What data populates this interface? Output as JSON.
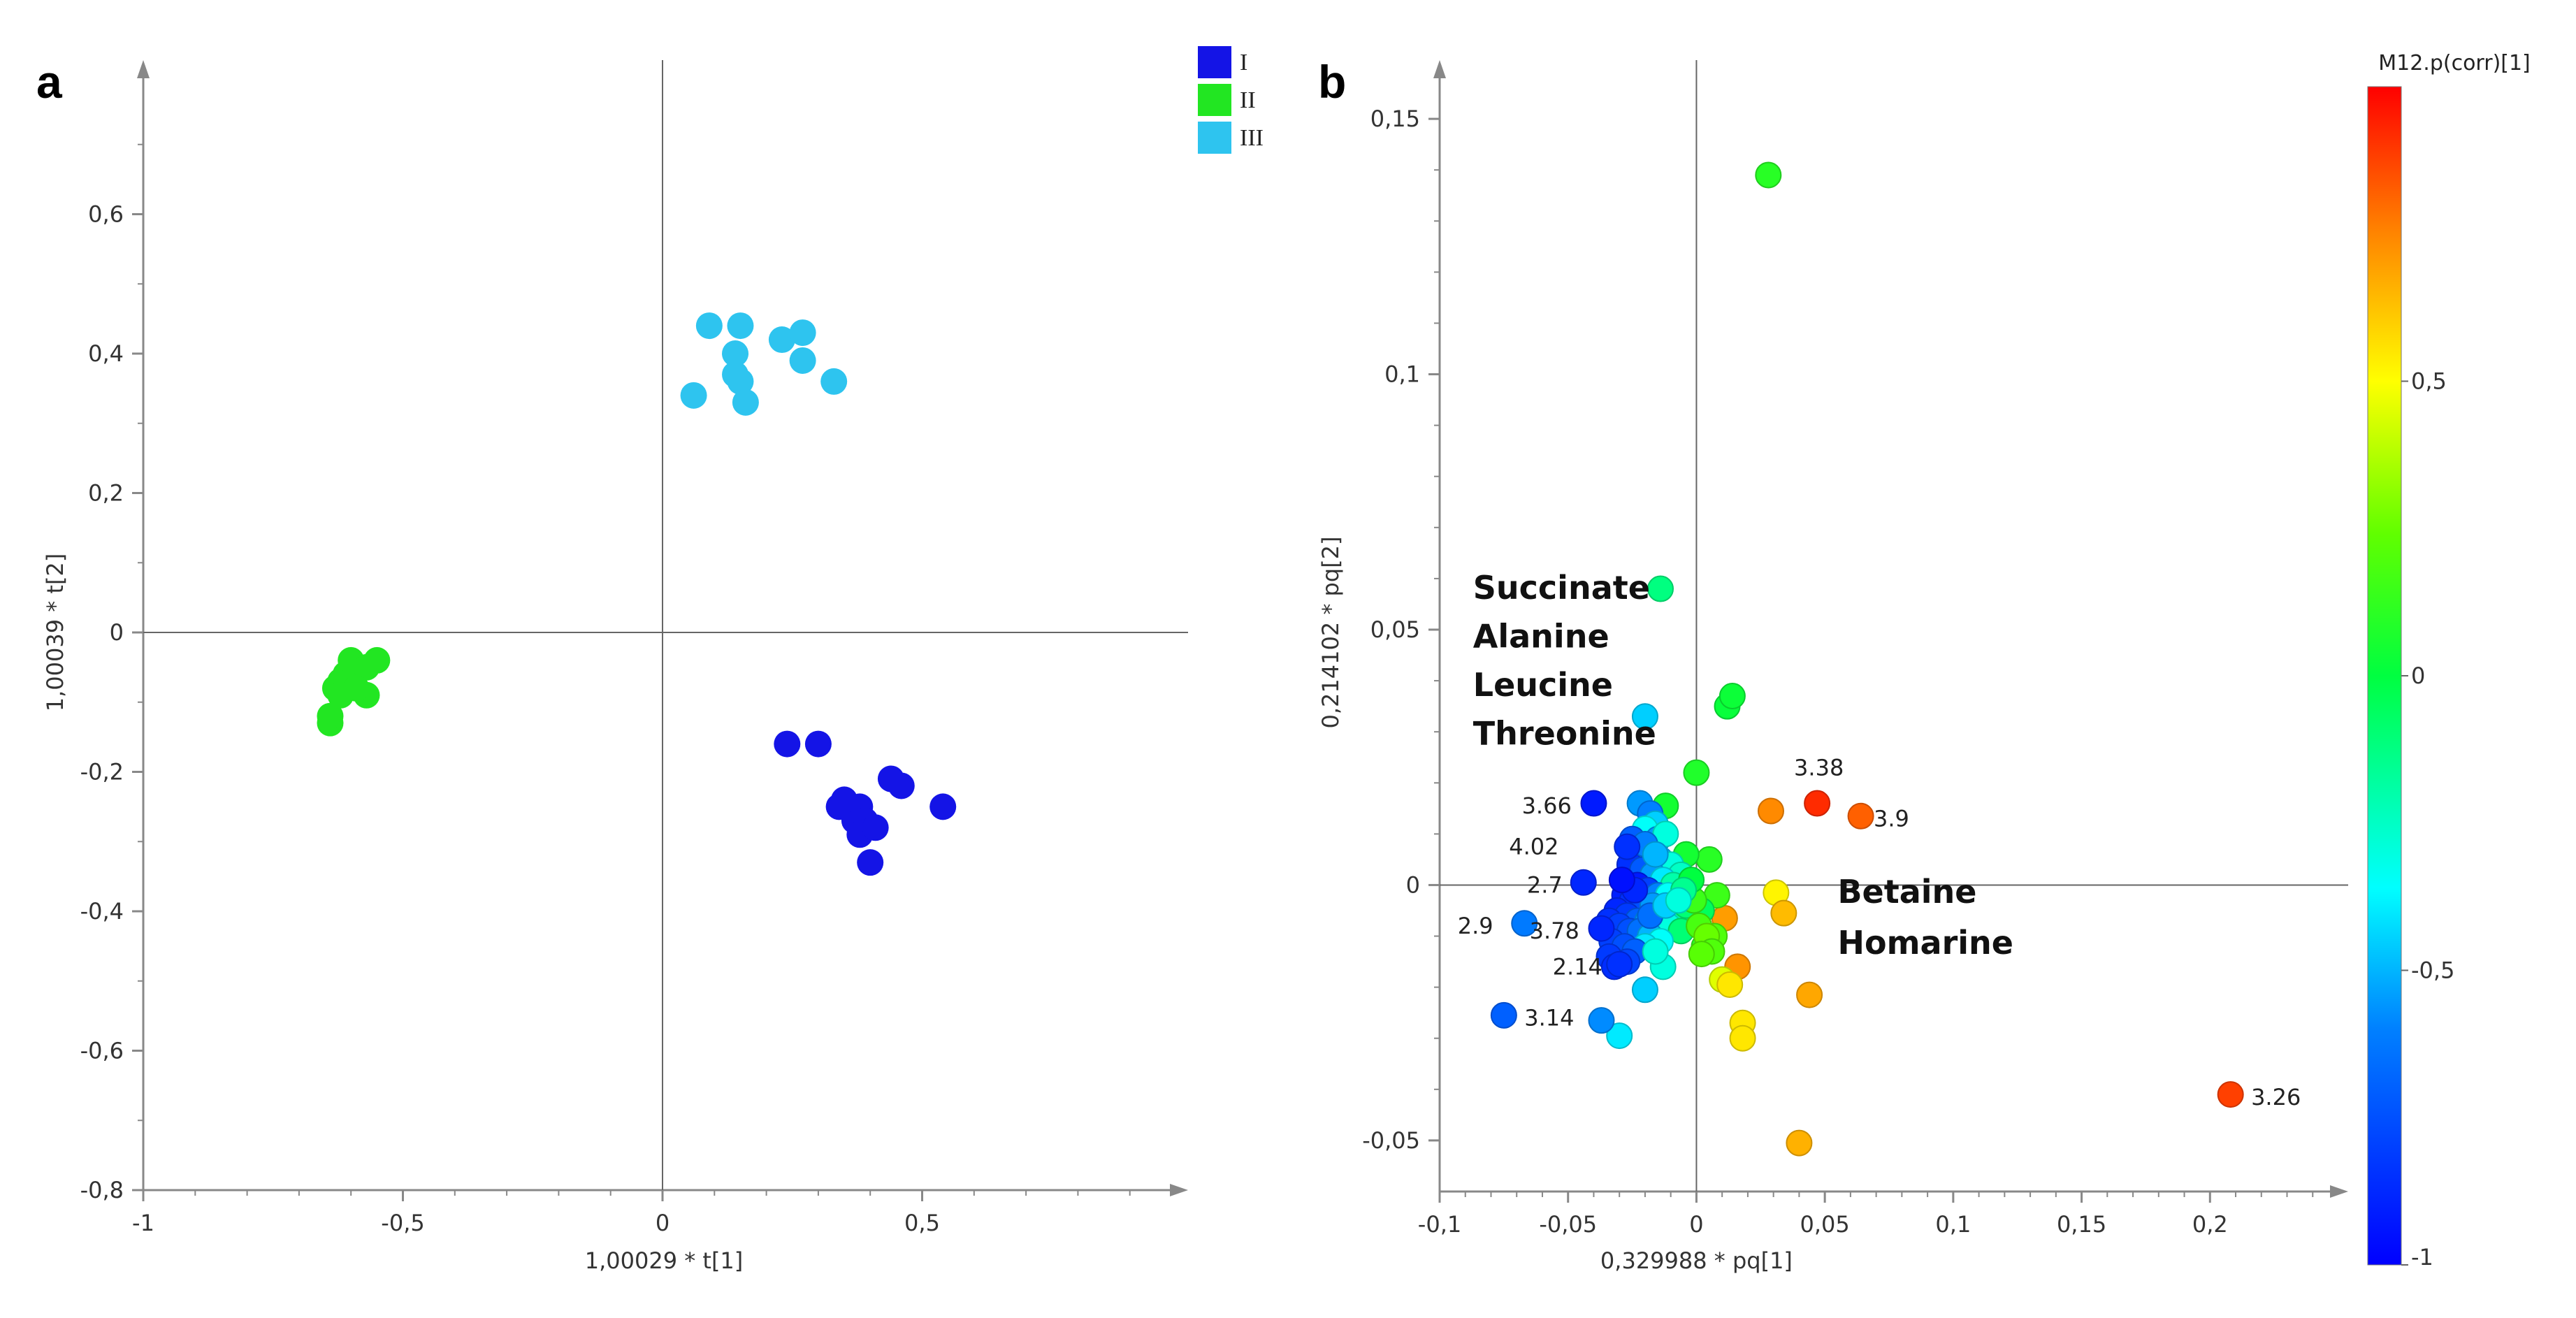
{
  "figure": {
    "letter_a": "a",
    "letter_b": "b"
  },
  "chart_data": [
    {
      "type": "scatter",
      "panel": "a",
      "xlabel": "1,00029 * t[1]",
      "ylabel": "1,00039 * t[2]",
      "xlim": [
        -1,
        1
      ],
      "ylim": [
        -0.8,
        0.8
      ],
      "x_ticks": [
        -1,
        -0.5,
        0,
        0.5
      ],
      "x_tick_labels": [
        "-1",
        "-0,5",
        "0",
        "0,5"
      ],
      "y_ticks": [
        -0.8,
        -0.6,
        -0.4,
        -0.2,
        0,
        0.2,
        0.4,
        0.6
      ],
      "y_tick_labels": [
        "-0,8",
        "-0,6",
        "-0,4",
        "-0,2",
        "0",
        "0,2",
        "0,4",
        "0,6"
      ],
      "legend": [
        {
          "name": "I",
          "color": "#1414e6"
        },
        {
          "name": "II",
          "color": "#22e622"
        },
        {
          "name": "III",
          "color": "#2ec4ef"
        }
      ],
      "legend_position": "top-right",
      "series": [
        {
          "name": "I",
          "color": "#1414e6",
          "points": [
            [
              0.24,
              -0.16
            ],
            [
              0.3,
              -0.16
            ],
            [
              0.34,
              -0.25
            ],
            [
              0.36,
              -0.25
            ],
            [
              0.38,
              -0.25
            ],
            [
              0.37,
              -0.27
            ],
            [
              0.39,
              -0.27
            ],
            [
              0.38,
              -0.29
            ],
            [
              0.41,
              -0.28
            ],
            [
              0.44,
              -0.21
            ],
            [
              0.46,
              -0.22
            ],
            [
              0.4,
              -0.33
            ],
            [
              0.54,
              -0.25
            ],
            [
              0.35,
              -0.24
            ]
          ]
        },
        {
          "name": "II",
          "color": "#22e622",
          "points": [
            [
              -0.64,
              -0.13
            ],
            [
              -0.64,
              -0.12
            ],
            [
              -0.63,
              -0.08
            ],
            [
              -0.62,
              -0.07
            ],
            [
              -0.61,
              -0.06
            ],
            [
              -0.6,
              -0.04
            ],
            [
              -0.57,
              -0.05
            ],
            [
              -0.55,
              -0.04
            ],
            [
              -0.57,
              -0.09
            ],
            [
              -0.59,
              -0.08
            ],
            [
              -0.62,
              -0.09
            ]
          ]
        },
        {
          "name": "III",
          "color": "#2ec4ef",
          "points": [
            [
              0.09,
              0.44
            ],
            [
              0.15,
              0.44
            ],
            [
              0.14,
              0.4
            ],
            [
              0.23,
              0.42
            ],
            [
              0.27,
              0.43
            ],
            [
              0.27,
              0.39
            ],
            [
              0.33,
              0.36
            ],
            [
              0.14,
              0.37
            ],
            [
              0.15,
              0.36
            ],
            [
              0.06,
              0.34
            ],
            [
              0.16,
              0.33
            ]
          ]
        }
      ]
    },
    {
      "type": "scatter",
      "panel": "b",
      "xlabel": "0,329988 * pq[1]",
      "ylabel": "0,214102 * pq[2]",
      "xlim": [
        -0.1,
        0.25
      ],
      "ylim": [
        -0.06,
        0.16
      ],
      "x_ticks": [
        -0.1,
        -0.05,
        0,
        0.05,
        0.1,
        0.15,
        0.2
      ],
      "x_tick_labels": [
        "-0,1",
        "-0,05",
        "0",
        "0,05",
        "0,1",
        "0,15",
        "0,2"
      ],
      "y_ticks": [
        -0.05,
        0,
        0.05,
        0.1,
        0.15
      ],
      "y_tick_labels": [
        "-0,05",
        "0",
        "0,05",
        "0,1",
        "0,15"
      ],
      "colorbar": {
        "title": "M12.p(corr)[1]",
        "range": [
          -1,
          1
        ],
        "ticks": [
          -1,
          -0.5,
          0,
          0.5
        ],
        "tick_labels": [
          "-1",
          "-0,5",
          "0",
          "0,5"
        ],
        "position": "right"
      },
      "annotations": [
        {
          "text": "Succinate",
          "x": -0.087,
          "y": 0.056
        },
        {
          "text": "Alanine",
          "x": -0.087,
          "y": 0.0465
        },
        {
          "text": "Leucine",
          "x": -0.087,
          "y": 0.037
        },
        {
          "text": "Threonine",
          "x": -0.087,
          "y": 0.0275
        },
        {
          "text": "Betaine",
          "x": 0.055,
          "y": -0.0035
        },
        {
          "text": "Homarine",
          "x": 0.055,
          "y": -0.0135
        }
      ],
      "labeled_points": [
        {
          "label": "3.38",
          "x": 0.047,
          "y": 0.016,
          "c": 0.92,
          "label_dx": -0.009,
          "label_dy": 0.007
        },
        {
          "label": "3.9",
          "x": 0.064,
          "y": 0.0135,
          "c": 0.82,
          "label_dx": 0.005,
          "label_dy": -0.0005
        },
        {
          "label": "3.66",
          "x": -0.04,
          "y": 0.016,
          "c": -0.92,
          "label_dx": -0.028,
          "label_dy": -0.0005
        },
        {
          "label": "4.02",
          "x": -0.027,
          "y": 0.0075,
          "c": -0.85,
          "label_dx": -0.046,
          "label_dy": 0.0
        },
        {
          "label": "2.7",
          "x": -0.044,
          "y": 0.0005,
          "c": -0.88,
          "label_dx": -0.022,
          "label_dy": -0.0005
        },
        {
          "label": "2.9",
          "x": -0.067,
          "y": -0.0075,
          "c": -0.62,
          "label_dx": -0.026,
          "label_dy": -0.0005
        },
        {
          "label": "3.78",
          "x": -0.037,
          "y": -0.0085,
          "c": -0.88,
          "label_dx": -0.028,
          "label_dy": -0.0005
        },
        {
          "label": "2.14",
          "x": -0.03,
          "y": -0.0155,
          "c": -0.85,
          "label_dx": -0.026,
          "label_dy": -0.0005
        },
        {
          "label": "3.14",
          "x": -0.075,
          "y": -0.0255,
          "c": -0.7,
          "label_dx": 0.008,
          "label_dy": -0.0005
        },
        {
          "label": "3.26",
          "x": 0.208,
          "y": -0.041,
          "c": 0.88,
          "label_dx": 0.008,
          "label_dy": -0.0005
        }
      ],
      "points": [
        [
          0.028,
          0.139,
          0.1
        ],
        [
          -0.014,
          0.058,
          -0.12
        ],
        [
          0.012,
          0.035,
          0.02
        ],
        [
          0.014,
          0.037,
          0.03
        ],
        [
          -0.02,
          0.033,
          -0.45
        ],
        [
          0.0,
          0.022,
          0.08
        ],
        [
          0.029,
          0.0145,
          0.74
        ],
        [
          0.031,
          -0.0015,
          0.52
        ],
        [
          0.034,
          -0.0055,
          0.64
        ],
        [
          0.011,
          -0.0065,
          0.7
        ],
        [
          0.016,
          -0.016,
          0.72
        ],
        [
          0.01,
          -0.0185,
          0.45
        ],
        [
          0.013,
          -0.0195,
          0.55
        ],
        [
          0.018,
          -0.027,
          0.55
        ],
        [
          0.018,
          -0.03,
          0.55
        ],
        [
          0.044,
          -0.0215,
          0.68
        ],
        [
          0.04,
          -0.0505,
          0.66
        ],
        [
          -0.02,
          -0.0205,
          -0.45
        ],
        [
          -0.03,
          -0.0295,
          -0.4
        ],
        [
          -0.037,
          -0.0265,
          -0.58
        ],
        [
          -0.013,
          -0.016,
          -0.3
        ],
        [
          -0.012,
          0.0155,
          0.05
        ],
        [
          -0.008,
          0.0035,
          0.08
        ],
        [
          0.005,
          0.005,
          0.1
        ],
        [
          0.003,
          -0.012,
          0.12
        ],
        [
          0.007,
          -0.01,
          0.2
        ],
        [
          0.008,
          -0.002,
          0.15
        ],
        [
          -0.004,
          0.006,
          0.05
        ],
        [
          0.002,
          -0.005,
          -0.05
        ],
        [
          -0.022,
          0.016,
          -0.55
        ],
        [
          -0.018,
          0.014,
          -0.6
        ],
        [
          -0.016,
          0.012,
          -0.45
        ],
        [
          -0.02,
          0.011,
          -0.35
        ],
        [
          -0.025,
          0.009,
          -0.7
        ],
        [
          -0.015,
          0.009,
          -0.55
        ],
        [
          -0.012,
          0.01,
          -0.3
        ],
        [
          -0.024,
          0.007,
          -0.8
        ],
        [
          -0.019,
          0.006,
          -0.65
        ],
        [
          -0.014,
          0.005,
          -0.5
        ],
        [
          -0.01,
          0.004,
          -0.3
        ],
        [
          -0.006,
          0.002,
          -0.25
        ],
        [
          -0.026,
          0.004,
          -0.85
        ],
        [
          -0.021,
          0.003,
          -0.72
        ],
        [
          -0.017,
          0.002,
          -0.55
        ],
        [
          -0.013,
          0.001,
          -0.4
        ],
        [
          -0.009,
          0.0,
          -0.2
        ],
        [
          -0.023,
          0.0,
          -0.92
        ],
        [
          -0.019,
          -0.001,
          -0.8
        ],
        [
          -0.015,
          -0.002,
          -0.6
        ],
        [
          -0.011,
          -0.002,
          -0.35
        ],
        [
          -0.028,
          -0.002,
          -0.9
        ],
        [
          -0.025,
          -0.003,
          -0.85
        ],
        [
          -0.021,
          -0.004,
          -0.75
        ],
        [
          -0.017,
          -0.004,
          -0.55
        ],
        [
          -0.013,
          -0.005,
          -0.4
        ],
        [
          -0.008,
          -0.006,
          -0.2
        ],
        [
          -0.004,
          -0.004,
          -0.1
        ],
        [
          -0.031,
          -0.005,
          -0.88
        ],
        [
          -0.027,
          -0.006,
          -0.82
        ],
        [
          -0.023,
          -0.007,
          -0.7
        ],
        [
          -0.019,
          -0.007,
          -0.55
        ],
        [
          -0.015,
          -0.008,
          -0.45
        ],
        [
          -0.011,
          -0.008,
          -0.3
        ],
        [
          -0.006,
          -0.009,
          -0.1
        ],
        [
          -0.034,
          -0.007,
          -0.85
        ],
        [
          -0.03,
          -0.008,
          -0.8
        ],
        [
          -0.026,
          -0.009,
          -0.75
        ],
        [
          -0.022,
          -0.009,
          -0.65
        ],
        [
          -0.018,
          -0.01,
          -0.5
        ],
        [
          -0.014,
          -0.011,
          -0.35
        ],
        [
          -0.02,
          -0.012,
          -0.4
        ],
        [
          -0.033,
          -0.011,
          -0.8
        ],
        [
          -0.028,
          -0.012,
          -0.75
        ],
        [
          -0.024,
          -0.013,
          -0.7
        ],
        [
          -0.034,
          -0.014,
          -0.82
        ],
        [
          -0.027,
          -0.015,
          -0.78
        ],
        [
          -0.032,
          -0.016,
          -0.86
        ],
        [
          -0.016,
          -0.013,
          -0.3
        ],
        [
          -0.001,
          -0.003,
          0.15
        ],
        [
          0.001,
          -0.008,
          0.18
        ],
        [
          0.004,
          -0.01,
          0.25
        ],
        [
          0.006,
          -0.013,
          0.2
        ],
        [
          0.002,
          -0.0135,
          0.22
        ],
        [
          -0.002,
          0.001,
          0.0
        ],
        [
          -0.005,
          -0.001,
          -0.15
        ],
        [
          -0.02,
          0.008,
          -0.6
        ],
        [
          -0.016,
          0.006,
          -0.5
        ],
        [
          -0.024,
          -0.001,
          -0.88
        ],
        [
          -0.029,
          0.001,
          -0.95
        ],
        [
          -0.018,
          -0.006,
          -0.65
        ],
        [
          -0.012,
          -0.004,
          -0.45
        ],
        [
          -0.007,
          -0.003,
          -0.3
        ]
      ]
    }
  ]
}
